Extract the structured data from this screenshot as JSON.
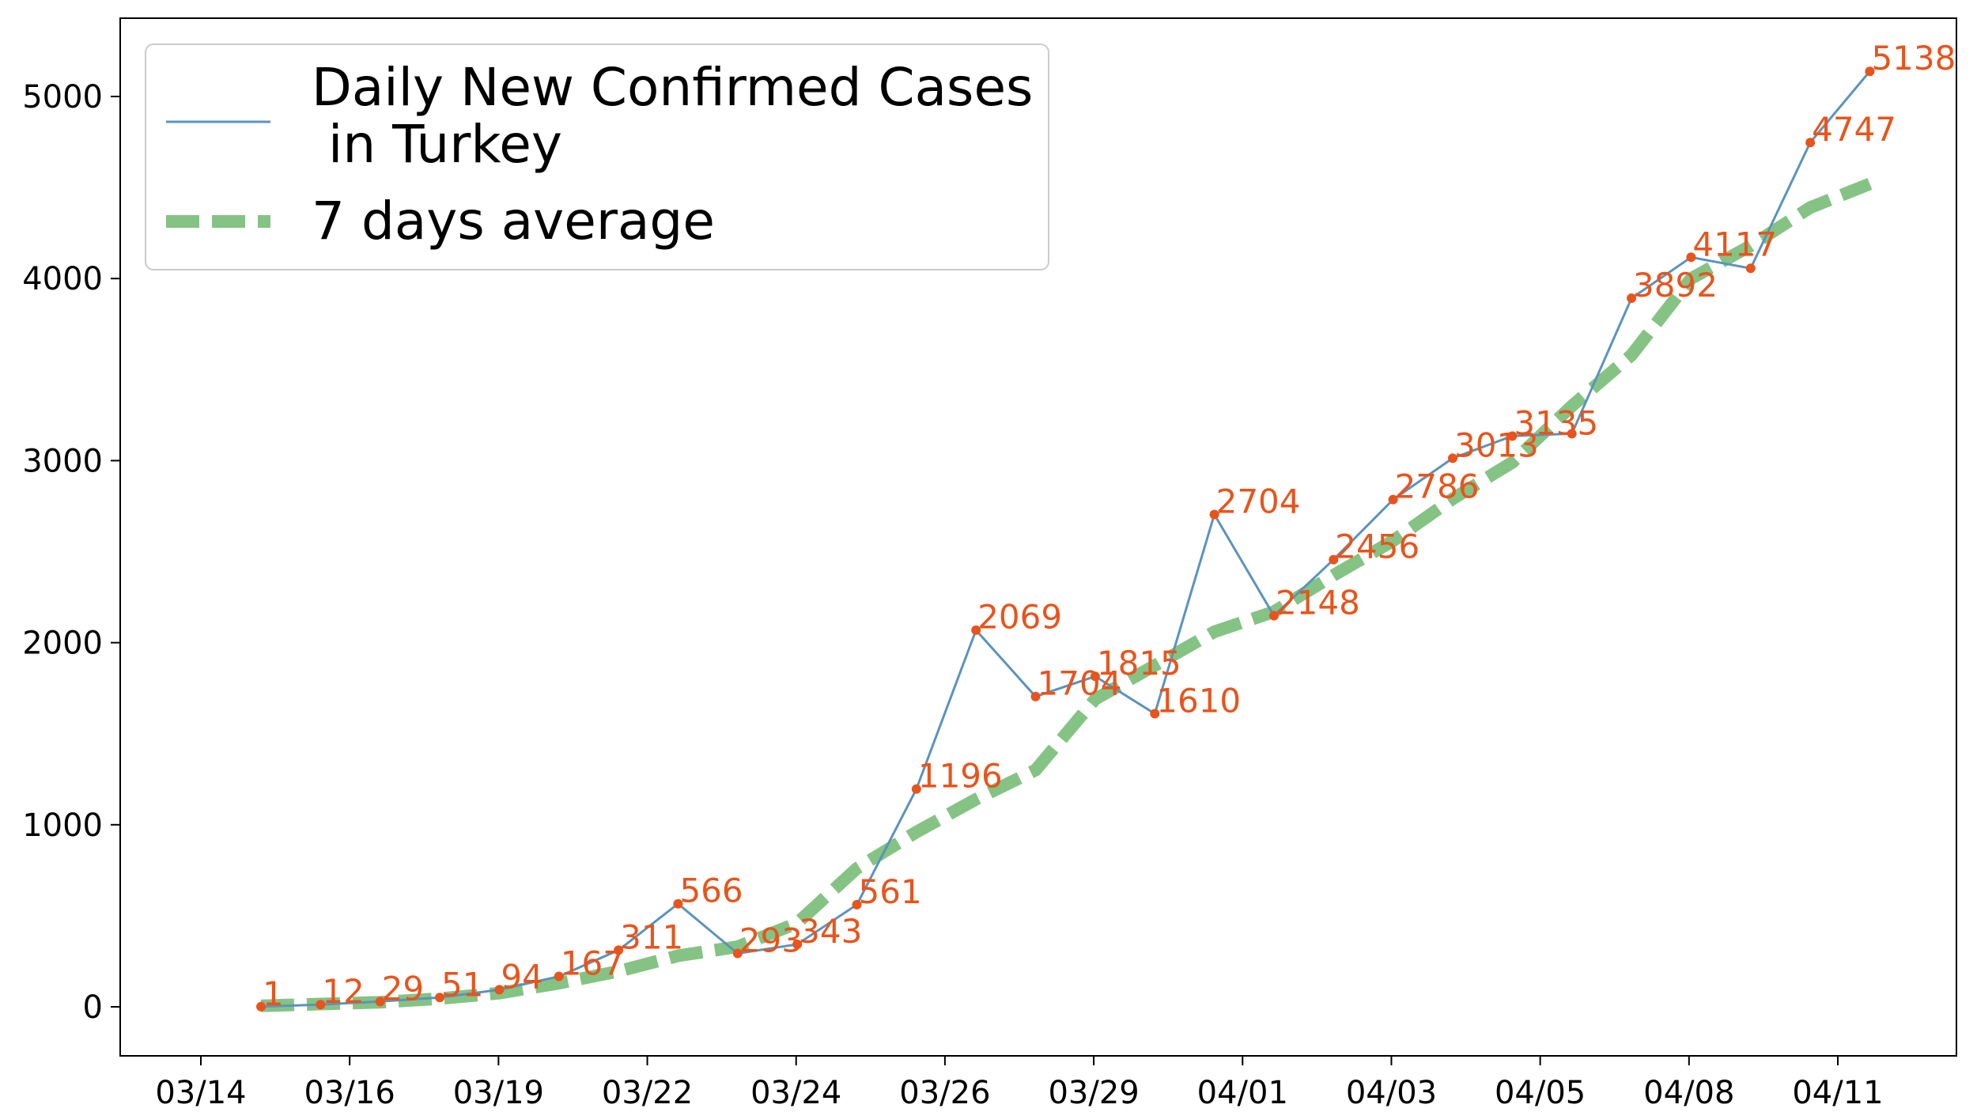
{
  "chart_data": {
    "type": "line",
    "title": "",
    "xlabel": "",
    "ylabel": "",
    "ylim": [
      -280,
      5400
    ],
    "y_ticks": [
      0,
      1000,
      2000,
      3000,
      4000,
      5000
    ],
    "x_tick_labels": [
      "03/14",
      "03/16",
      "03/19",
      "03/22",
      "03/24",
      "03/26",
      "03/29",
      "04/01",
      "04/03",
      "04/05",
      "04/08",
      "04/11"
    ],
    "grid": false,
    "legend_position": "top-left",
    "legend": [
      {
        "line1": "Daily New Confirmed Cases",
        "line2": " in Turkey"
      },
      {
        "line1": "7 days average",
        "line2": ""
      }
    ],
    "series": [
      {
        "values": [
          1,
          12,
          29,
          51,
          94,
          167,
          311,
          566,
          293,
          343,
          561,
          1196,
          2069,
          1704,
          1815,
          1610,
          2704,
          2148,
          2456,
          2786,
          3013,
          3135,
          3148,
          3892,
          4117,
          4056,
          4747,
          5138
        ],
        "labels": [
          "1",
          "12",
          "29",
          "51",
          "94",
          "167",
          "311",
          "566",
          "293",
          "343",
          "561",
          "1196",
          "2069",
          "1704",
          "1815",
          "1610",
          "2704",
          "2148",
          "2456",
          "2786",
          "3013",
          "3135",
          "",
          "3892",
          "4117",
          "",
          "4747",
          "5138"
        ],
        "color": "#5b93bd",
        "marker_color": "#e8541c",
        "label_color": "#e8541c"
      },
      {
        "values": [
          5,
          15,
          25,
          45,
          75,
          130,
          195,
          280,
          330,
          460,
          760,
          960,
          1140,
          1300,
          1690,
          1875,
          2060,
          2170,
          2370,
          2560,
          2790,
          2990,
          3300,
          3580,
          4000,
          4180,
          4390,
          4520
        ],
        "color": "#6fb86f",
        "dashed": true
      }
    ]
  }
}
